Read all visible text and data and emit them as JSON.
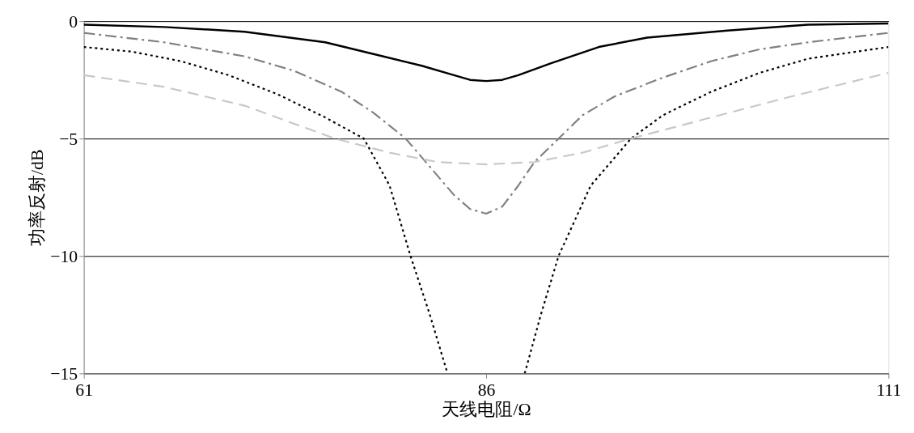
{
  "chart_data": {
    "type": "line",
    "xlabel": "天线电阻/Ω",
    "ylabel": "功率反射/dB",
    "xlim": [
      61,
      111
    ],
    "xticks": [
      61,
      86,
      111
    ],
    "ylim": [
      -15,
      0
    ],
    "yticks": [
      -15,
      -10,
      -5,
      0
    ],
    "grid": "y",
    "marker": "none",
    "series": [
      {
        "color": "#000000",
        "line_style": "solid",
        "x": [
          61,
          66,
          71,
          76,
          79,
          82,
          84,
          85,
          86,
          87,
          88,
          90,
          93,
          96,
          101,
          106,
          111
        ],
        "values": [
          -0.15,
          -0.25,
          -0.45,
          -0.9,
          -1.4,
          -1.9,
          -2.3,
          -2.5,
          -2.55,
          -2.5,
          -2.3,
          -1.8,
          -1.1,
          -0.7,
          -0.4,
          -0.15,
          -0.1
        ]
      },
      {
        "color": "#808080",
        "line_style": "dashdot",
        "x": [
          61,
          66,
          71,
          74,
          77,
          79,
          81,
          82.5,
          84,
          85,
          86,
          87,
          88,
          89,
          90.5,
          92,
          94,
          97,
          100,
          103,
          106,
          111
        ],
        "values": [
          -0.5,
          -0.9,
          -1.5,
          -2.1,
          -3.0,
          -3.9,
          -5.0,
          -6.2,
          -7.4,
          -8.0,
          -8.2,
          -7.9,
          -7.0,
          -6.0,
          -5.0,
          -4.0,
          -3.2,
          -2.4,
          -1.7,
          -1.2,
          -0.9,
          -0.5
        ]
      },
      {
        "color": "#000000",
        "line_style": "dotted",
        "x": [
          61,
          64,
          67,
          70,
          73,
          76,
          78.4,
          80,
          81.3,
          82.5,
          83.6,
          86,
          88.4,
          89.4,
          90.5,
          92.5,
          95,
          97,
          100,
          103,
          106,
          109,
          111
        ],
        "values": [
          -1.1,
          -1.3,
          -1.7,
          -2.3,
          -3.1,
          -4.1,
          -5.0,
          -7.0,
          -10,
          -12.5,
          -15,
          null,
          -15,
          -12.5,
          -10,
          -7.0,
          -5.0,
          -4.0,
          -3.0,
          -2.2,
          -1.6,
          -1.3,
          -1.1
        ]
      },
      {
        "color": "#c8c8c8",
        "line_style": "dashed",
        "x": [
          61,
          66,
          71,
          76.6,
          80,
          83,
          86,
          89,
          92,
          95,
          100,
          105,
          111
        ],
        "values": [
          -2.3,
          -2.8,
          -3.6,
          -5.0,
          -5.6,
          -6.0,
          -6.1,
          -6.0,
          -5.6,
          -5.0,
          -4.1,
          -3.2,
          -2.2
        ]
      }
    ]
  }
}
